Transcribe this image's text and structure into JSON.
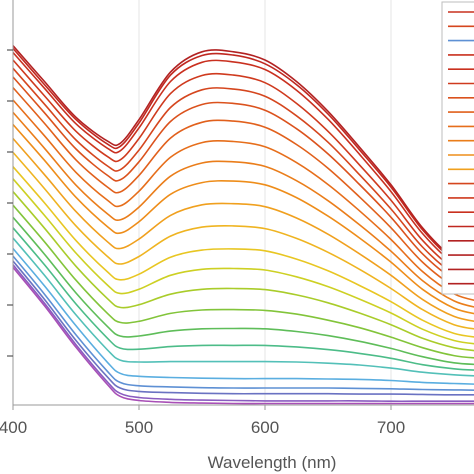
{
  "chart_data": {
    "type": "line",
    "title": "",
    "xlabel": "Wavelength (nm)",
    "ylabel": "",
    "xlim": [
      400,
      770
    ],
    "ylim": [
      0,
      1
    ],
    "x_ticks": [
      400,
      500,
      600,
      700
    ],
    "x_tick_labels": [
      "400",
      "500",
      "600",
      "700"
    ],
    "grid": "vertical",
    "legend_position": "right",
    "x": [
      400,
      425,
      450,
      475,
      485,
      500,
      525,
      550,
      575,
      600,
      625,
      650,
      675,
      700,
      725,
      750,
      770
    ],
    "series": [
      {
        "color": "#b22222",
        "values": [
          0.953,
          0.858,
          0.763,
          0.7,
          0.694,
          0.757,
          0.883,
          0.937,
          0.937,
          0.915,
          0.858,
          0.779,
          0.684,
          0.584,
          0.47,
          0.388,
          0.36
        ]
      },
      {
        "color": "#c02820",
        "values": [
          0.946,
          0.85,
          0.757,
          0.692,
          0.686,
          0.748,
          0.875,
          0.927,
          0.928,
          0.905,
          0.85,
          0.772,
          0.677,
          0.578,
          0.465,
          0.383,
          0.355
        ]
      },
      {
        "color": "#c9301f",
        "values": [
          0.935,
          0.84,
          0.746,
          0.681,
          0.674,
          0.735,
          0.858,
          0.909,
          0.91,
          0.89,
          0.835,
          0.758,
          0.665,
          0.566,
          0.455,
          0.375,
          0.348
        ]
      },
      {
        "color": "#cf3a1e",
        "values": [
          0.915,
          0.82,
          0.726,
          0.659,
          0.65,
          0.707,
          0.826,
          0.874,
          0.875,
          0.855,
          0.8,
          0.726,
          0.637,
          0.543,
          0.437,
          0.361,
          0.335
        ]
      },
      {
        "color": "#d5461e",
        "values": [
          0.893,
          0.798,
          0.703,
          0.634,
          0.624,
          0.676,
          0.789,
          0.836,
          0.838,
          0.819,
          0.767,
          0.697,
          0.611,
          0.52,
          0.419,
          0.347,
          0.322
        ]
      },
      {
        "color": "#db521d",
        "values": [
          0.87,
          0.775,
          0.679,
          0.609,
          0.597,
          0.645,
          0.752,
          0.797,
          0.8,
          0.782,
          0.733,
          0.666,
          0.585,
          0.498,
          0.401,
          0.333,
          0.309
        ]
      },
      {
        "color": "#e1601c",
        "values": [
          0.842,
          0.747,
          0.65,
          0.578,
          0.565,
          0.609,
          0.708,
          0.75,
          0.753,
          0.737,
          0.691,
          0.628,
          0.552,
          0.47,
          0.379,
          0.315,
          0.293
        ]
      },
      {
        "color": "#e66e1b",
        "values": [
          0.809,
          0.714,
          0.617,
          0.543,
          0.528,
          0.567,
          0.657,
          0.696,
          0.699,
          0.685,
          0.643,
          0.585,
          0.515,
          0.439,
          0.354,
          0.295,
          0.275
        ]
      },
      {
        "color": "#ea7d1a",
        "values": [
          0.776,
          0.681,
          0.583,
          0.507,
          0.491,
          0.525,
          0.607,
          0.642,
          0.645,
          0.633,
          0.595,
          0.542,
          0.478,
          0.408,
          0.33,
          0.276,
          0.257
        ]
      },
      {
        "color": "#ee8d1a",
        "values": [
          0.744,
          0.649,
          0.551,
          0.473,
          0.456,
          0.486,
          0.559,
          0.59,
          0.594,
          0.584,
          0.55,
          0.501,
          0.443,
          0.379,
          0.307,
          0.257,
          0.24
        ]
      },
      {
        "color": "#f0a01e",
        "values": [
          0.707,
          0.611,
          0.513,
          0.433,
          0.415,
          0.44,
          0.503,
          0.531,
          0.534,
          0.526,
          0.496,
          0.453,
          0.401,
          0.344,
          0.28,
          0.235,
          0.22
        ]
      },
      {
        "color": "#efb421",
        "values": [
          0.67,
          0.574,
          0.475,
          0.394,
          0.374,
          0.394,
          0.448,
          0.472,
          0.475,
          0.468,
          0.442,
          0.405,
          0.36,
          0.309,
          0.253,
          0.213,
          0.2
        ]
      },
      {
        "color": "#e8c622",
        "values": [
          0.632,
          0.536,
          0.436,
          0.353,
          0.332,
          0.347,
          0.392,
          0.411,
          0.414,
          0.409,
          0.387,
          0.356,
          0.317,
          0.274,
          0.225,
          0.19,
          0.179
        ]
      },
      {
        "color": "#cdd023",
        "values": [
          0.6,
          0.503,
          0.403,
          0.318,
          0.296,
          0.307,
          0.344,
          0.36,
          0.362,
          0.358,
          0.34,
          0.314,
          0.281,
          0.244,
          0.201,
          0.171,
          0.161
        ]
      },
      {
        "color": "#a9cc2a",
        "values": [
          0.566,
          0.469,
          0.368,
          0.282,
          0.259,
          0.266,
          0.294,
          0.307,
          0.309,
          0.306,
          0.292,
          0.271,
          0.244,
          0.213,
          0.177,
          0.152,
          0.143
        ]
      },
      {
        "color": "#82c43a",
        "values": [
          0.53,
          0.433,
          0.331,
          0.243,
          0.219,
          0.222,
          0.243,
          0.252,
          0.253,
          0.251,
          0.241,
          0.225,
          0.205,
          0.18,
          0.152,
          0.131,
          0.124
        ]
      },
      {
        "color": "#5ebd59",
        "values": [
          0.498,
          0.4,
          0.297,
          0.208,
          0.183,
          0.183,
          0.196,
          0.202,
          0.203,
          0.202,
          0.195,
          0.184,
          0.169,
          0.15,
          0.128,
          0.112,
          0.107
        ]
      },
      {
        "color": "#4cbc88",
        "values": [
          0.47,
          0.372,
          0.268,
          0.177,
          0.151,
          0.148,
          0.155,
          0.158,
          0.158,
          0.158,
          0.154,
          0.147,
          0.137,
          0.124,
          0.107,
          0.096,
          0.092
        ]
      },
      {
        "color": "#53c0b8",
        "values": [
          0.443,
          0.344,
          0.239,
          0.146,
          0.119,
          0.114,
          0.115,
          0.115,
          0.115,
          0.115,
          0.114,
          0.111,
          0.106,
          0.098,
          0.087,
          0.08,
          0.077
        ]
      },
      {
        "color": "#5aaee0",
        "values": [
          0.415,
          0.316,
          0.21,
          0.113,
          0.084,
          0.076,
          0.073,
          0.071,
          0.07,
          0.07,
          0.07,
          0.069,
          0.068,
          0.065,
          0.06,
          0.057,
          0.055
        ]
      },
      {
        "color": "#5e90d4",
        "values": [
          0.395,
          0.294,
          0.186,
          0.089,
          0.06,
          0.051,
          0.048,
          0.046,
          0.045,
          0.045,
          0.045,
          0.045,
          0.044,
          0.043,
          0.041,
          0.04,
          0.039
        ]
      },
      {
        "color": "#6a72c2",
        "values": [
          0.382,
          0.28,
          0.171,
          0.074,
          0.045,
          0.036,
          0.033,
          0.031,
          0.03,
          0.03,
          0.03,
          0.03,
          0.029,
          0.029,
          0.028,
          0.027,
          0.027
        ]
      },
      {
        "color": "#8a5cc0",
        "values": [
          0.372,
          0.27,
          0.16,
          0.061,
          0.031,
          0.02,
          0.015,
          0.013,
          0.012,
          0.011,
          0.011,
          0.011,
          0.011,
          0.01,
          0.01,
          0.01,
          0.01
        ]
      },
      {
        "color": "#a84fb6",
        "values": [
          0.365,
          0.263,
          0.153,
          0.054,
          0.023,
          0.012,
          0.007,
          0.005,
          0.004,
          0.004,
          0.004,
          0.004,
          0.004,
          0.004,
          0.004,
          0.004,
          0.004
        ]
      }
    ],
    "legend_swatch_colors": [
      "#c9301f",
      "#d5461e",
      "#5e90d4",
      "#c9301f",
      "#c9301f",
      "#cf3a1e",
      "#db521d",
      "#e1601c",
      "#e66e1b",
      "#ea7d1a",
      "#ee8d1a",
      "#f0a01e",
      "#d5461e",
      "#cf3a1e",
      "#c9301f",
      "#c02820",
      "#b22222",
      "#b22222",
      "#b22222",
      "#b22222"
    ]
  }
}
